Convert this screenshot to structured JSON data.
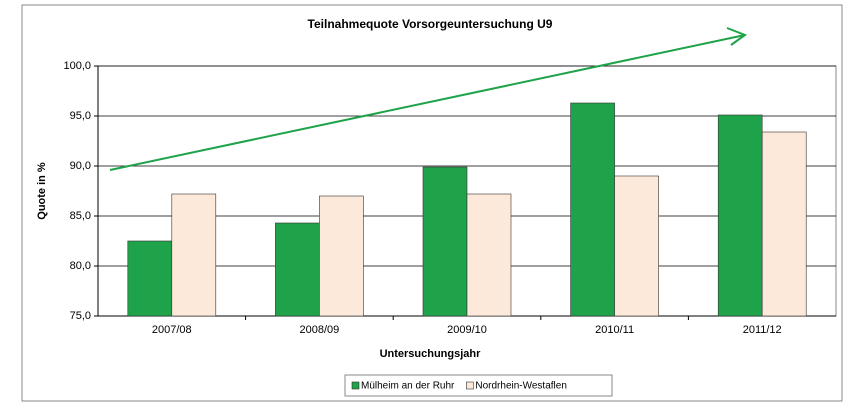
{
  "chart_data": {
    "type": "bar",
    "title": "Teilnahmequote Vorsorgeuntersuchung U9",
    "x_label": "Untersuchungsjahr",
    "y_label": "Quote in %",
    "categories": [
      "2007/08",
      "2008/09",
      "2009/10",
      "2010/11",
      "2011/12"
    ],
    "series": [
      {
        "name": "Mülheim an der Ruhr",
        "color": "#1ea34a",
        "values": [
          82.5,
          84.3,
          89.9,
          96.3,
          95.1
        ]
      },
      {
        "name": "Nordrhein-Westaflen",
        "color": "#fde9d9",
        "values": [
          87.2,
          87.0,
          87.2,
          89.0,
          93.4
        ]
      }
    ],
    "ylim": [
      75,
      100
    ],
    "yticks": [
      {
        "value": 75,
        "label": "75,0"
      },
      {
        "value": 80,
        "label": "80,0"
      },
      {
        "value": 85,
        "label": "85,0"
      },
      {
        "value": 90,
        "label": "90,0"
      },
      {
        "value": 95,
        "label": "95,0"
      },
      {
        "value": 100,
        "label": "100,0"
      }
    ],
    "grid": true,
    "legend": "bottom"
  }
}
